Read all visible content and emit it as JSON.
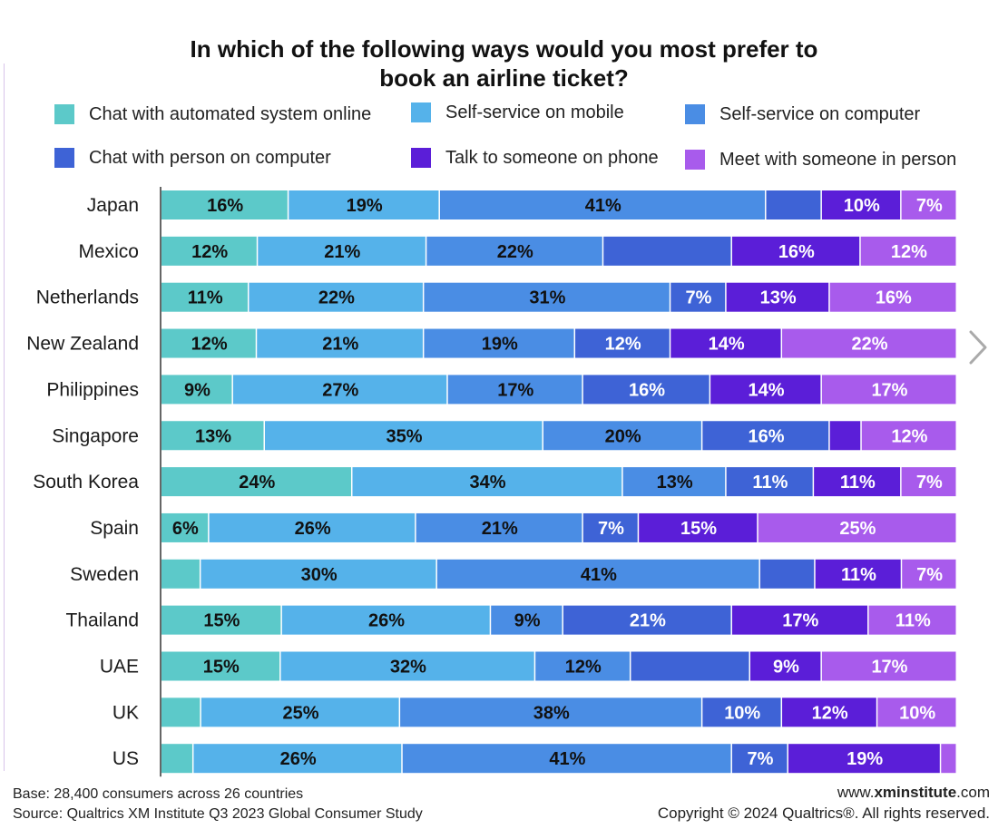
{
  "title_line1": "In which of the following ways would you most prefer to",
  "title_line2": "book an airline ticket?",
  "legend": [
    {
      "label": "Chat with automated system online",
      "color": "#5cc9c9"
    },
    {
      "label": "Self-service on mobile",
      "color": "#55b2ea"
    },
    {
      "label": "Self-service on computer",
      "color": "#4a8de4"
    },
    {
      "label": "Chat with person on computer",
      "color": "#3e63d6"
    },
    {
      "label": "Talk to someone on phone",
      "color": "#5b1ed8"
    },
    {
      "label": "Meet with someone in person",
      "color": "#a85bec"
    }
  ],
  "chart_data": {
    "type": "bar",
    "orientation": "horizontal",
    "stacked": true,
    "title": "In which of the following ways would you most prefer to book an airline ticket?",
    "categories": [
      "Japan",
      "Mexico",
      "Netherlands",
      "New Zealand",
      "Philippines",
      "Singapore",
      "South Korea",
      "Spain",
      "Sweden",
      "Thailand",
      "UAE",
      "UK",
      "US"
    ],
    "series": [
      {
        "name": "Chat with automated system online",
        "color": "#5cc9c9",
        "values": [
          16,
          12,
          11,
          12,
          9,
          13,
          24,
          6,
          5,
          15,
          15,
          5,
          4
        ]
      },
      {
        "name": "Self-service on mobile",
        "color": "#55b2ea",
        "values": [
          19,
          21,
          22,
          21,
          27,
          35,
          34,
          26,
          30,
          26,
          32,
          25,
          26
        ]
      },
      {
        "name": "Self-service on computer",
        "color": "#4a8de4",
        "values": [
          41,
          22,
          31,
          19,
          17,
          20,
          13,
          21,
          41,
          9,
          12,
          38,
          41
        ]
      },
      {
        "name": "Chat with person on computer",
        "color": "#3e63d6",
        "values": [
          7,
          16,
          7,
          12,
          16,
          16,
          11,
          7,
          7,
          21,
          15,
          10,
          7
        ]
      },
      {
        "name": "Talk to someone on phone",
        "color": "#5b1ed8",
        "values": [
          10,
          16,
          13,
          14,
          14,
          4,
          11,
          15,
          11,
          17,
          9,
          12,
          19
        ]
      },
      {
        "name": "Meet with someone in person",
        "color": "#a85bec",
        "values": [
          7,
          12,
          16,
          22,
          17,
          12,
          7,
          25,
          7,
          11,
          17,
          10,
          2
        ]
      }
    ],
    "labels": [
      [
        "16%",
        "19%",
        "41%",
        "",
        "10%",
        "7%"
      ],
      [
        "12%",
        "21%",
        "22%",
        "",
        "16%",
        "12%"
      ],
      [
        "11%",
        "22%",
        "31%",
        "7%",
        "13%",
        "16%"
      ],
      [
        "12%",
        "21%",
        "19%",
        "12%",
        "14%",
        "22%"
      ],
      [
        "9%",
        "27%",
        "17%",
        "16%",
        "14%",
        "17%"
      ],
      [
        "13%",
        "35%",
        "20%",
        "16%",
        "",
        "12%"
      ],
      [
        "24%",
        "34%",
        "13%",
        "11%",
        "11%",
        "7%"
      ],
      [
        "6%",
        "26%",
        "21%",
        "7%",
        "15%",
        "25%"
      ],
      [
        "",
        "30%",
        "41%",
        "",
        "11%",
        "7%"
      ],
      [
        "15%",
        "26%",
        "9%",
        "21%",
        "17%",
        "11%"
      ],
      [
        "15%",
        "32%",
        "12%",
        "",
        "9%",
        "17%"
      ],
      [
        "",
        "25%",
        "38%",
        "10%",
        "12%",
        "10%"
      ],
      [
        "",
        "26%",
        "41%",
        "7%",
        "19%",
        ""
      ]
    ],
    "label_colors": [
      "#111111",
      "#111111",
      "#111111",
      "#ffffff",
      "#ffffff",
      "#ffffff"
    ],
    "xlim": [
      0,
      100
    ],
    "unit": "%"
  },
  "footer": {
    "base": "Base: 28,400 consumers across 26 countries",
    "source": "Source: Qualtrics XM Institute Q3 2023 Global Consumer Study",
    "site_prefix": "www.",
    "site_bold": "xminstitute",
    "site_suffix": ".com",
    "copyright": "Copyright © 2024 Qualtrics®. All rights reserved."
  }
}
